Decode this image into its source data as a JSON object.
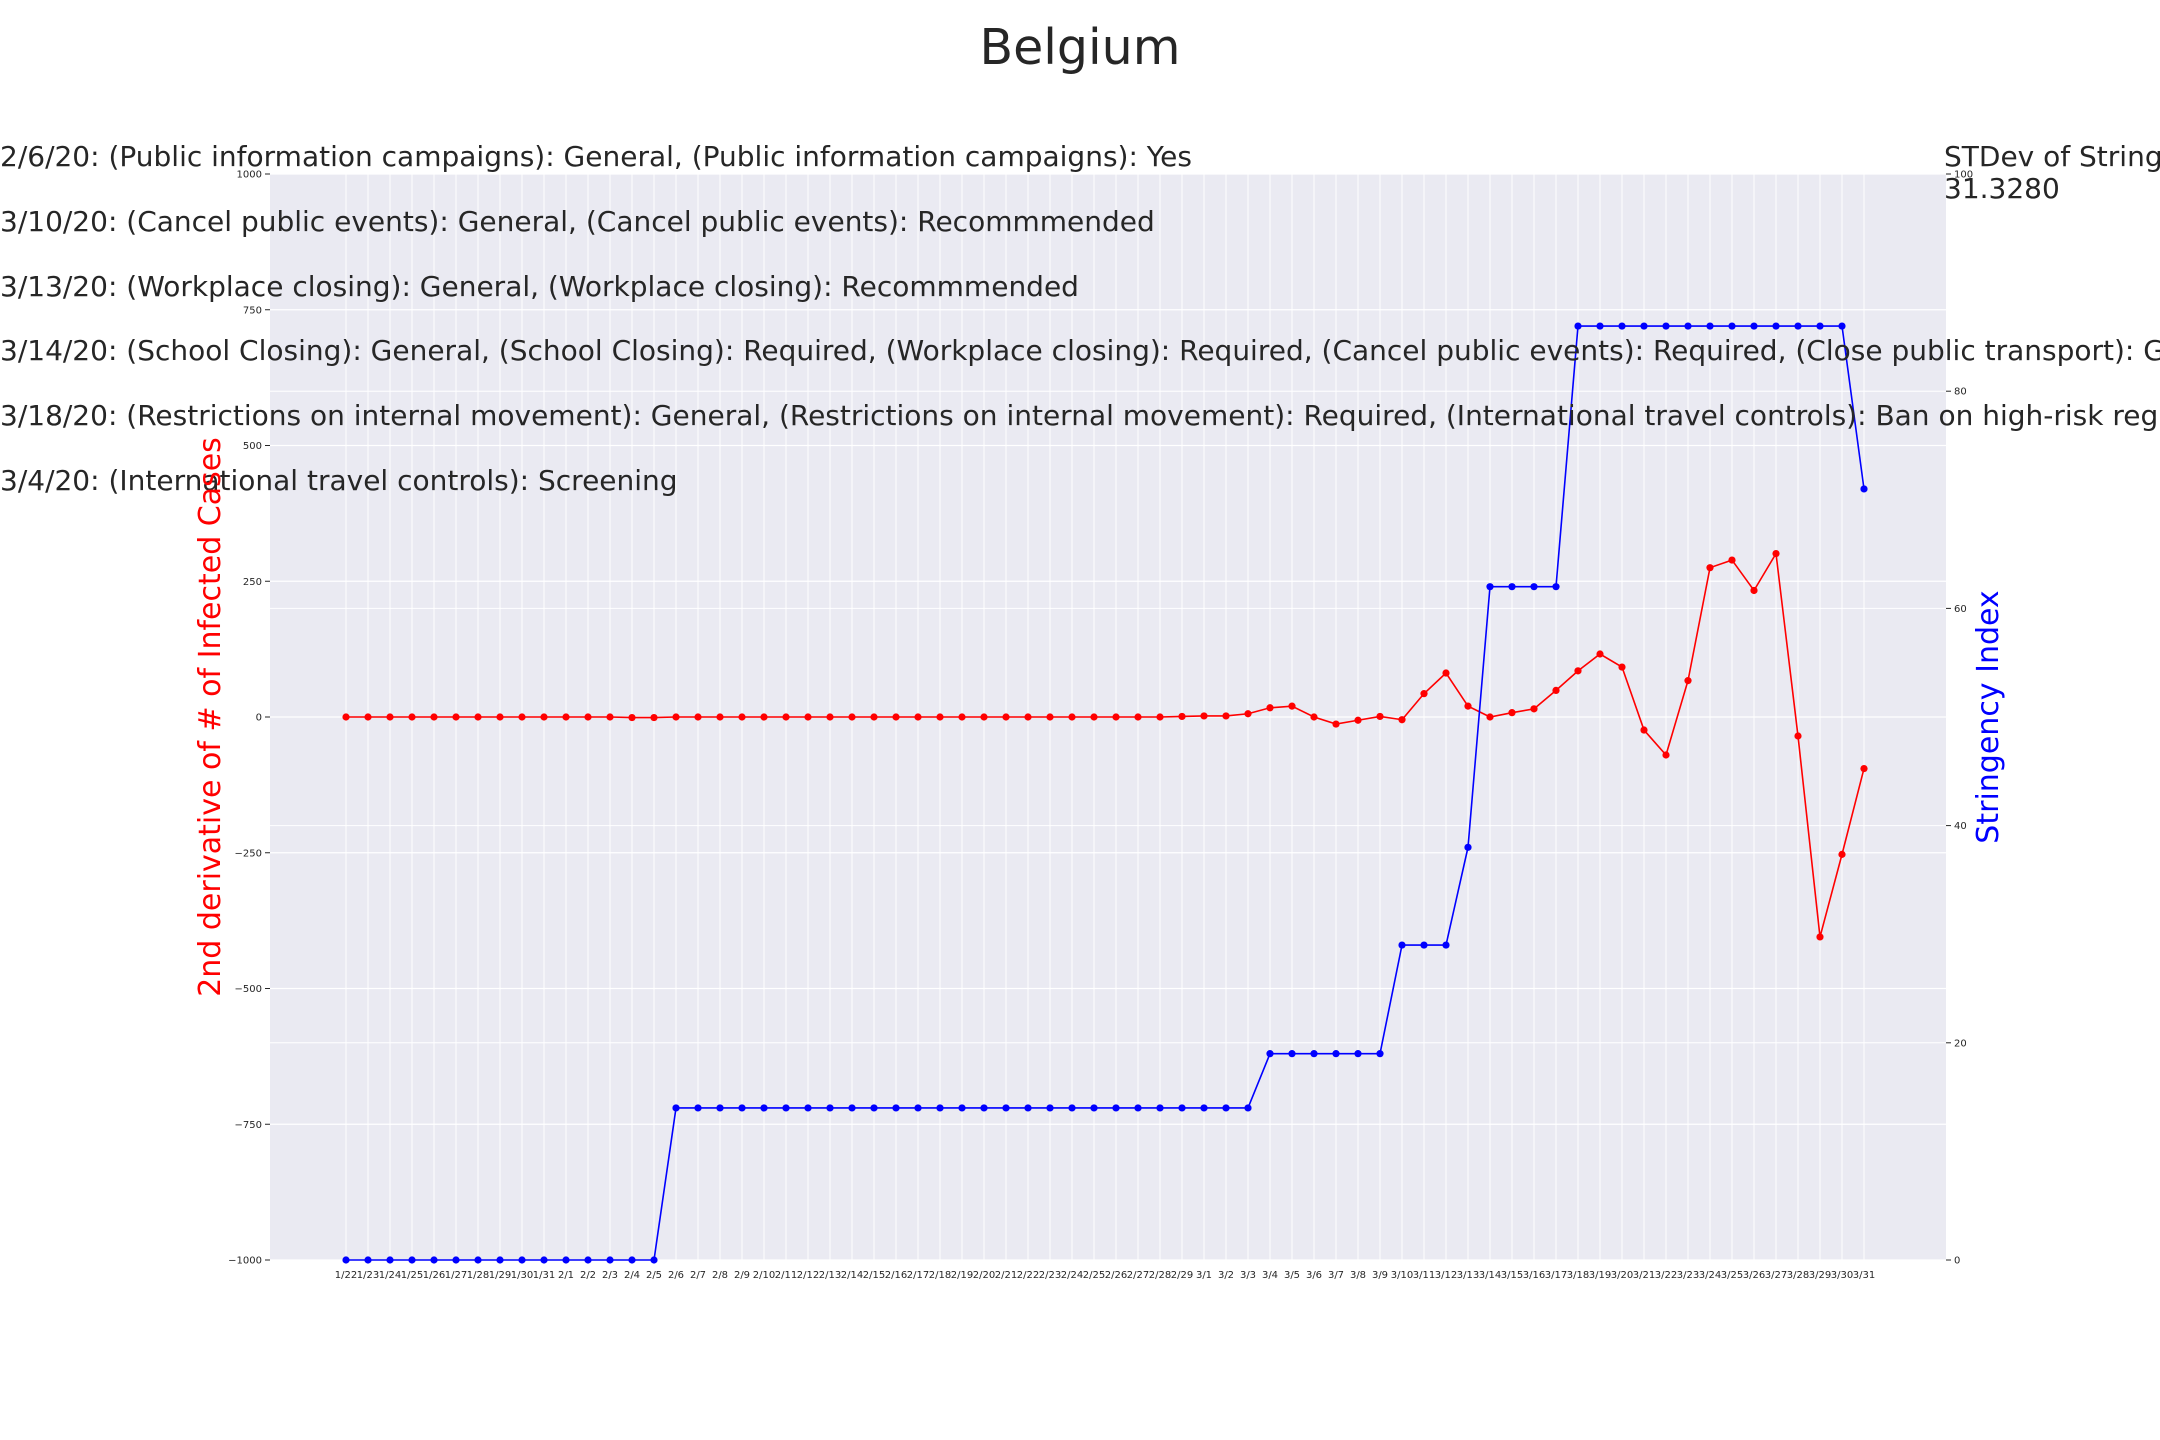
{
  "title": "Belgium",
  "annotations": [
    "2/6/20: (Public information campaigns): General, (Public information campaigns): Yes",
    "3/10/20: (Cancel public events): General, (Cancel public events): Recommmended",
    "3/13/20: (Workplace closing): General, (Workplace closing): Recommmended",
    "3/14/20: (School Closing): General, (School Closing): Required, (Workplace closing): Required, (Cancel public events): Required, (Close public transport): General",
    "3/18/20: (Restrictions on internal movement): General, (Restrictions on internal movement): Required, (International travel controls): Ban on high-risk region",
    "3/4/20: (International travel controls): Screening"
  ],
  "stdev": {
    "label": "STDev of Stringency",
    "value": "31.3280"
  },
  "colors": {
    "background": "#eaeaf2",
    "grid": "#ffffff",
    "cases": "#ff0000",
    "stringency": "#0000ff"
  },
  "chart_data": {
    "type": "line",
    "title": "Belgium",
    "grid": true,
    "x": [
      "1/22",
      "1/23",
      "1/24",
      "1/25",
      "1/26",
      "1/27",
      "1/28",
      "1/29",
      "1/30",
      "1/31",
      "2/1",
      "2/2",
      "2/3",
      "2/4",
      "2/5",
      "2/6",
      "2/7",
      "2/8",
      "2/9",
      "2/10",
      "2/11",
      "2/12",
      "2/13",
      "2/14",
      "2/15",
      "2/16",
      "2/17",
      "2/18",
      "2/19",
      "2/20",
      "2/21",
      "2/22",
      "2/23",
      "2/24",
      "2/25",
      "2/26",
      "2/27",
      "2/28",
      "2/29",
      "3/1",
      "3/2",
      "3/3",
      "3/4",
      "3/5",
      "3/6",
      "3/7",
      "3/8",
      "3/9",
      "3/10",
      "3/11",
      "3/12",
      "3/13",
      "3/14",
      "3/15",
      "3/16",
      "3/17",
      "3/18",
      "3/19",
      "3/20",
      "3/21",
      "3/22",
      "3/23",
      "3/24",
      "3/25",
      "3/26",
      "3/27",
      "3/28",
      "3/29",
      "3/30",
      "3/31"
    ],
    "y_left": {
      "label": "2nd derivative of # of Infected Cases",
      "ylim": [
        -1000,
        1000
      ],
      "ticks": [
        -1000,
        -750,
        -500,
        -250,
        0,
        250,
        500,
        750,
        1000
      ]
    },
    "y_right": {
      "label": "Stringency Index",
      "ylim": [
        0,
        100
      ],
      "ticks": [
        0,
        20,
        40,
        60,
        80,
        100
      ]
    },
    "series": [
      {
        "name": "2nd derivative of # of Infected Cases",
        "axis": "left",
        "values": [
          0,
          0,
          0,
          0,
          0,
          0,
          0,
          0,
          0,
          0,
          0,
          0,
          0,
          -1,
          -1,
          0,
          0,
          0,
          0,
          0,
          0,
          0,
          0,
          0,
          0,
          0,
          0,
          0,
          0,
          0,
          0,
          0,
          0,
          0,
          0,
          0,
          0,
          0,
          1,
          2,
          2,
          6,
          17,
          20,
          0,
          -13,
          -6,
          1,
          -5,
          43,
          81,
          20,
          0,
          8,
          15,
          49,
          85,
          116,
          92,
          -24,
          -70,
          67,
          275,
          289,
          233,
          301,
          -35,
          -405,
          -253,
          -95
        ]
      },
      {
        "name": "Stringency Index",
        "axis": "right",
        "values": [
          0,
          0,
          0,
          0,
          0,
          0,
          0,
          0,
          0,
          0,
          0,
          0,
          0,
          0,
          0,
          14,
          14,
          14,
          14,
          14,
          14,
          14,
          14,
          14,
          14,
          14,
          14,
          14,
          14,
          14,
          14,
          14,
          14,
          14,
          14,
          14,
          14,
          14,
          14,
          14,
          14,
          14,
          19,
          19,
          19,
          19,
          19,
          19,
          29,
          29,
          29,
          38,
          62,
          62,
          62,
          62,
          86,
          86,
          86,
          86,
          86,
          86,
          86,
          86,
          86,
          86,
          86,
          86,
          86,
          71
        ]
      }
    ]
  }
}
